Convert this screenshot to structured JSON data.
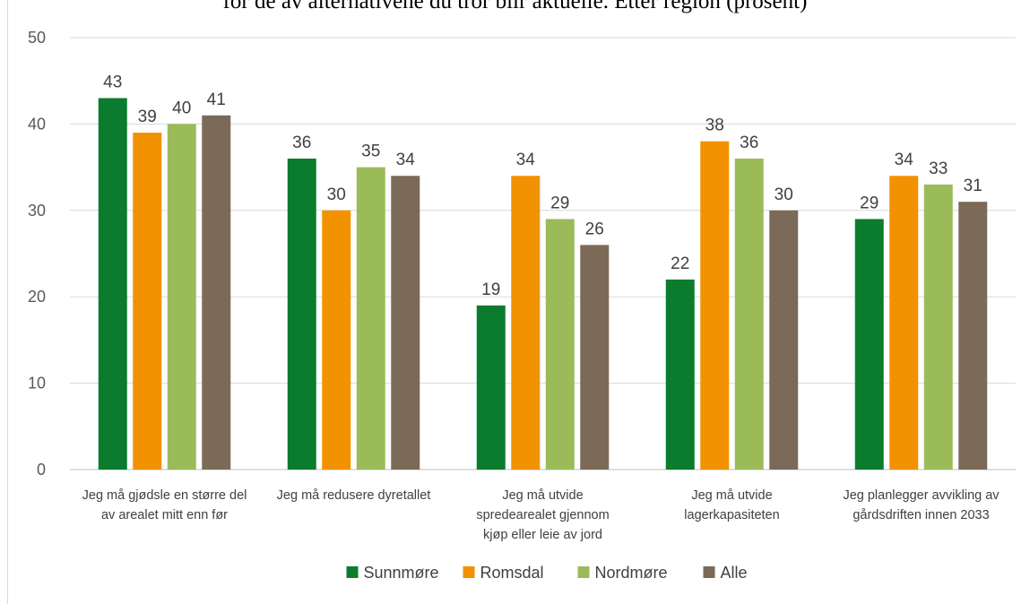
{
  "chart_data": {
    "type": "bar",
    "title": "for de av alternativene du tror blir aktuelle. Etter region (prosent)",
    "categories": [
      [
        "Jeg må gjødsle en større del",
        "av arealet mitt enn før"
      ],
      [
        "Jeg må redusere dyretallet"
      ],
      [
        "Jeg må utvide",
        "spredearealet gjennom",
        "kjøp eller leie av jord"
      ],
      [
        "Jeg må utvide",
        "lagerkapasiteten"
      ],
      [
        "Jeg planlegger avvikling av",
        "gårdsdriften innen 2033"
      ]
    ],
    "series": [
      {
        "name": "Sunnmøre",
        "color": "#0b7b2e",
        "values": [
          43,
          36,
          19,
          22,
          29
        ]
      },
      {
        "name": "Romsdal",
        "color": "#f29200",
        "values": [
          39,
          30,
          34,
          38,
          34
        ]
      },
      {
        "name": "Nordmøre",
        "color": "#9bbb59",
        "values": [
          40,
          35,
          29,
          36,
          33
        ]
      },
      {
        "name": "Alle",
        "color": "#7b6a58",
        "values": [
          41,
          34,
          26,
          30,
          31
        ]
      }
    ],
    "ylim": [
      0,
      50
    ],
    "yticks": [
      0,
      10,
      20,
      30,
      40,
      50
    ],
    "grid": true,
    "legend_position": "bottom",
    "data_labels": true
  }
}
